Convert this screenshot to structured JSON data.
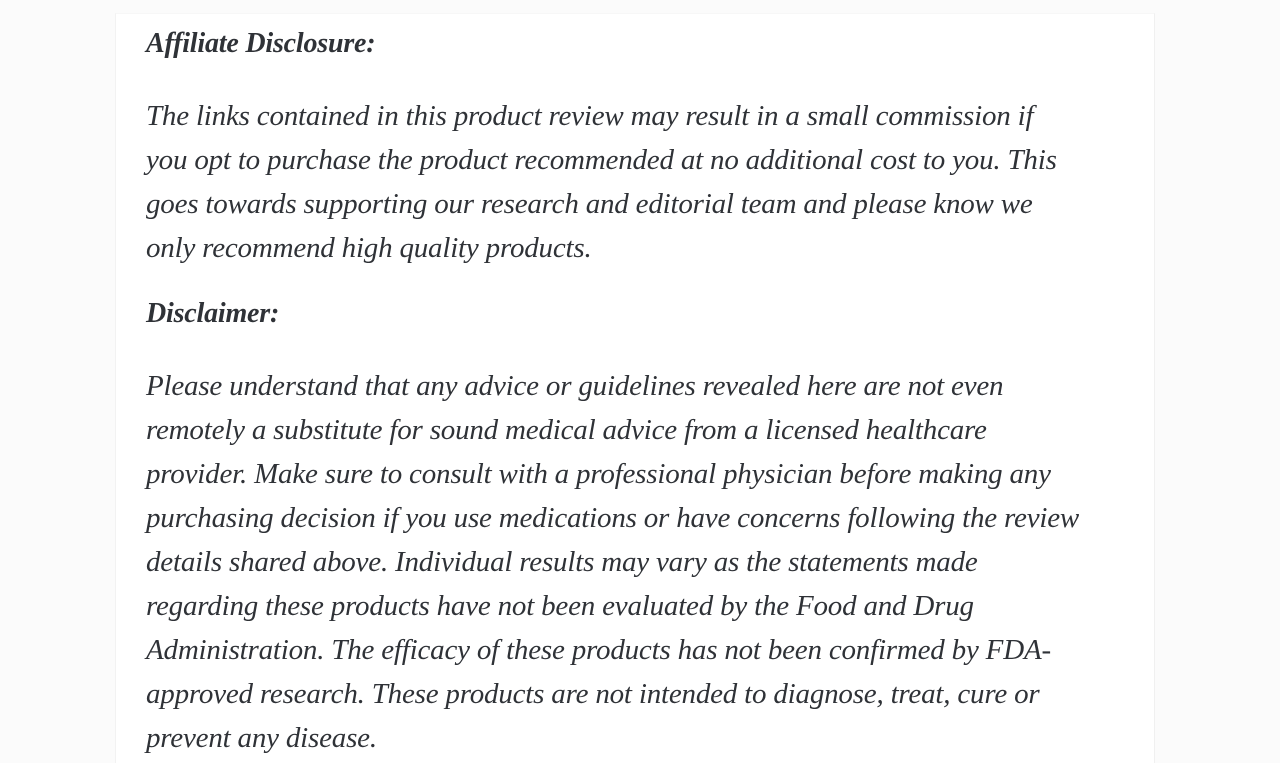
{
  "page": {
    "background_color": "#fbfbfb",
    "card_background_color": "#ffffff",
    "text_color": "#2f3237"
  },
  "article": {
    "sections": [
      {
        "heading": "Affiliate Disclosure:",
        "paragraph_lines": [
          "The links contained in this product review may result in a small commission if",
          "you opt to purchase the product recommended at no additional cost to you. This",
          "goes towards supporting our research and editorial team and please know we",
          "only recommend high quality products."
        ]
      },
      {
        "heading": "Disclaimer:",
        "paragraph_lines": [
          "Please understand that any advice or guidelines revealed here are not even",
          "remotely a substitute for sound medical advice from a licensed healthcare",
          "provider. Make sure to consult with a professional physician before making any",
          "purchasing decision if you use medications or have concerns following the review",
          "details shared above. Individual results may vary as the statements made",
          "regarding these products have not been evaluated by the Food and Drug",
          "Administration. The efficacy of these products has not been confirmed by FDA-",
          "approved research. These products are not intended to diagnose, treat, cure or",
          "prevent any disease."
        ]
      }
    ]
  }
}
